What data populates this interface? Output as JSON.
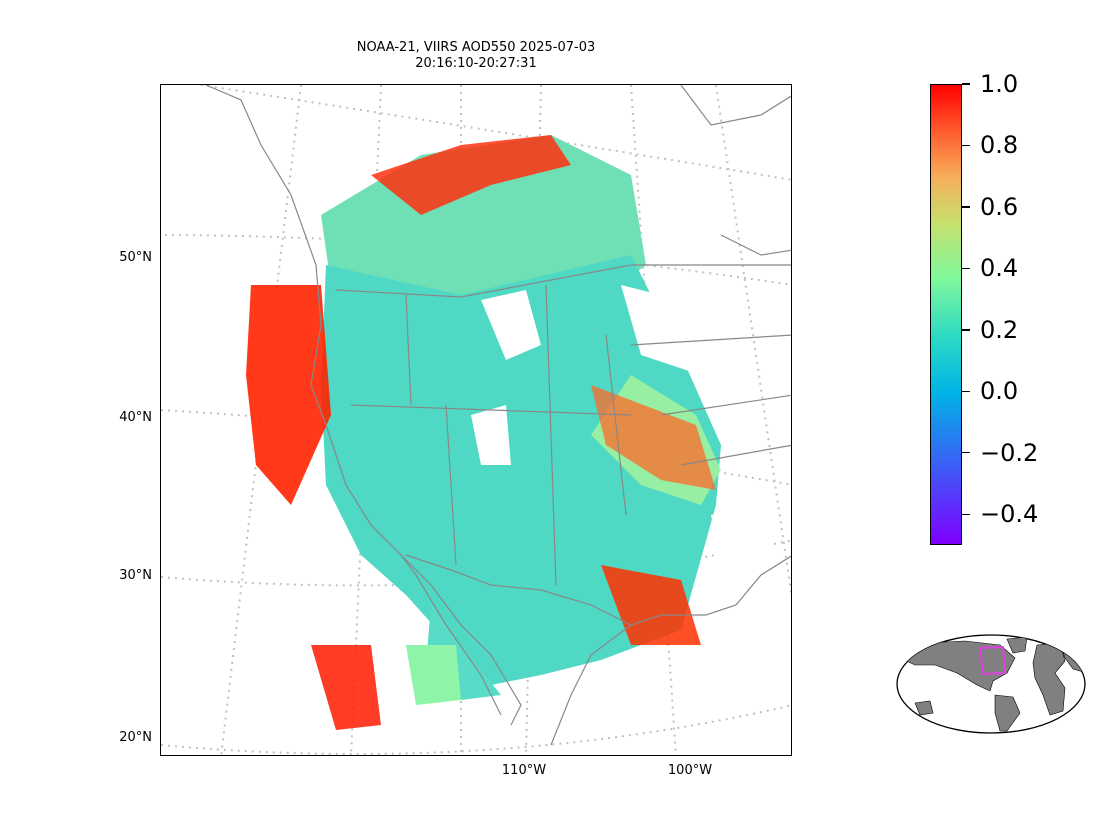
{
  "title": {
    "line1": "NOAA-21, VIIRS AOD550 2025-07-03",
    "line2": "20:16:10-20:27:31"
  },
  "map": {
    "lat_labels": [
      "50°N",
      "40°N",
      "30°N",
      "20°N"
    ],
    "lon_labels": [
      "110°W",
      "100°W"
    ]
  },
  "colorbar": {
    "range": [
      -0.5,
      1.0
    ],
    "ticks": [
      "1.0",
      "0.8",
      "0.6",
      "0.4",
      "0.2",
      "0.0",
      "−0.2",
      "−0.4"
    ],
    "tick_values": [
      1.0,
      0.8,
      0.6,
      0.4,
      0.2,
      0.0,
      -0.2,
      -0.4
    ],
    "colormap": "rainbow"
  },
  "colors": {
    "coastline": "#888888",
    "gridline": "#c0c0c0",
    "land_inset": "#808080",
    "domain_box": "#e040e0",
    "aod_high": "#ff0000",
    "aod_mid": "#8cf596",
    "aod_low": "#2cd3d8"
  }
}
